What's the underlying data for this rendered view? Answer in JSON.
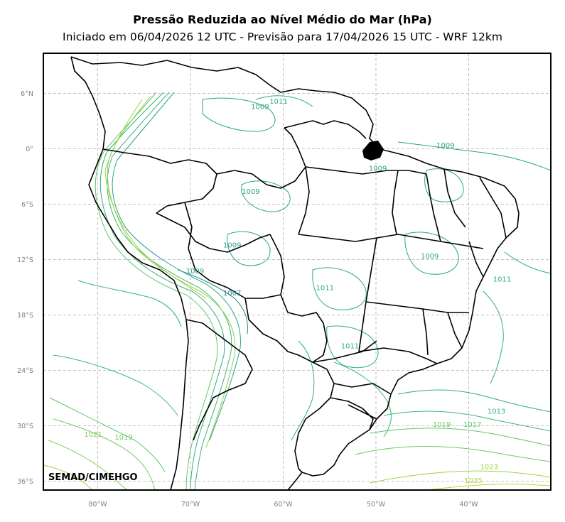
{
  "title": "Pressão Reduzida ao Nível Médio do Mar (hPa)",
  "subtitle": "Iniciado em 06/04/2026 12 UTC - Previsão para 17/04/2026 15 UTC - WRF 12km",
  "credit": "SEMAD/CIMEHGO",
  "lat_ticks": [
    {
      "label": "6°N",
      "value": 6
    },
    {
      "label": "0°",
      "value": 0
    },
    {
      "label": "6°S",
      "value": -6
    },
    {
      "label": "12°S",
      "value": -12
    },
    {
      "label": "18°S",
      "value": -18
    },
    {
      "label": "24°S",
      "value": -24
    },
    {
      "label": "30°S",
      "value": -30
    },
    {
      "label": "36°S",
      "value": -36
    }
  ],
  "lon_ticks": [
    {
      "label": "80°W",
      "value": -80
    },
    {
      "label": "70°W",
      "value": -70
    },
    {
      "label": "60°W",
      "value": -60
    },
    {
      "label": "50°W",
      "value": -50
    },
    {
      "label": "40°W",
      "value": -40
    }
  ],
  "colors": {
    "c1007": "#1f8a8a",
    "c1009": "#2aa38a",
    "c1011": "#2fae7e",
    "c1013": "#3cb873",
    "c1017": "#5ec765",
    "c1019": "#6fcb5c",
    "c1021": "#86d14e",
    "c1023": "#9bd544",
    "c1025": "#b5db3a",
    "border": "#000000",
    "grid": "#b0b0b0"
  },
  "contour_labels": [
    {
      "text": "1007",
      "lon": -65.5,
      "lat": -15.9,
      "color": "c1007"
    },
    {
      "text": "1009",
      "lon": -69.5,
      "lat": -13.5,
      "color": "c1009"
    },
    {
      "text": "1009",
      "lon": -65.5,
      "lat": -10.7,
      "color": "c1009"
    },
    {
      "text": "1009",
      "lon": -63.5,
      "lat": -4.9,
      "color": "c1009"
    },
    {
      "text": "1009",
      "lon": -62.5,
      "lat": 4.3,
      "color": "c1009"
    },
    {
      "text": "1011",
      "lon": -60.5,
      "lat": 4.9,
      "color": "c1011"
    },
    {
      "text": "1009",
      "lon": -42.5,
      "lat": 0.1,
      "color": "c1009"
    },
    {
      "text": "1009",
      "lon": -49.8,
      "lat": -2.4,
      "color": "c1009"
    },
    {
      "text": "1009",
      "lon": -44.2,
      "lat": -11.9,
      "color": "c1009"
    },
    {
      "text": "1011",
      "lon": -55.5,
      "lat": -15.3,
      "color": "c1011"
    },
    {
      "text": "1011",
      "lon": -52.8,
      "lat": -21.6,
      "color": "c1011"
    },
    {
      "text": "1011",
      "lon": -36.4,
      "lat": -14.4,
      "color": "c1011"
    },
    {
      "text": "1013",
      "lon": -37.0,
      "lat": -28.7,
      "color": "c1013"
    },
    {
      "text": "1017",
      "lon": -39.6,
      "lat": -30.1,
      "color": "c1017"
    },
    {
      "text": "1019",
      "lon": -42.9,
      "lat": -30.1,
      "color": "c1019"
    },
    {
      "text": "1019",
      "lon": -77.2,
      "lat": -31.5,
      "color": "c1019"
    },
    {
      "text": "1021",
      "lon": -80.5,
      "lat": -31.2,
      "color": "c1021"
    },
    {
      "text": "1023",
      "lon": -37.8,
      "lat": -34.7,
      "color": "c1023"
    },
    {
      "text": "1025",
      "lon": -39.5,
      "lat": -36.2,
      "color": "c1025"
    }
  ]
}
